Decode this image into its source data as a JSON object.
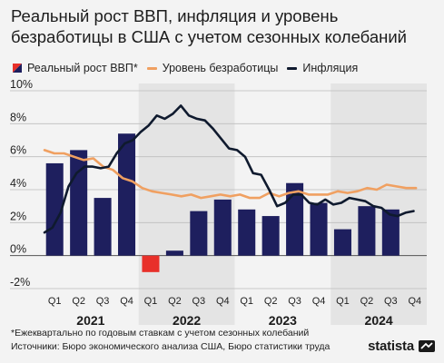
{
  "title": "Реальный рост ВВП, инфляция и уровень безработицы в США с учетом сезонных колебаний",
  "legend": {
    "gdp": "Реальный рост ВВП*",
    "unemployment": "Уровень безработицы",
    "inflation": "Инфляция"
  },
  "footnote": {
    "line1": "*Ежеквартально по годовым ставкам с учетом сезонных колебаний",
    "line2": "Источники: Бюро экономического анализа США, Бюро статистики труда"
  },
  "brand": {
    "name": "statista",
    "icon": "statista-logo-icon"
  },
  "colors": {
    "gdp_bar": "#1e1f5e",
    "gdp_negative": "#e8302a",
    "unemployment": "#f0a061",
    "inflation": "#0f1a2e",
    "year_band": "#e4e4e4"
  },
  "chart_data": {
    "type": "bar+line",
    "ylim": [
      -2,
      10
    ],
    "yticks": [
      "-2%",
      "0%",
      "2%",
      "4%",
      "6%",
      "8%",
      "10%"
    ],
    "ytick_values": [
      -2,
      0,
      2,
      4,
      6,
      8,
      10
    ],
    "quarters": [
      "Q1",
      "Q2",
      "Q3",
      "Q4",
      "Q1",
      "Q2",
      "Q3",
      "Q4",
      "Q1",
      "Q2",
      "Q3",
      "Q4",
      "Q1",
      "Q2",
      "Q3",
      "Q4"
    ],
    "years": [
      "2021",
      "2022",
      "2023",
      "2024"
    ],
    "grid": true,
    "series": [
      {
        "name": "Реальный рост ВВП*",
        "kind": "bar",
        "values": [
          5.6,
          6.4,
          3.5,
          7.4,
          -1.0,
          0.3,
          2.7,
          3.4,
          2.8,
          2.4,
          4.4,
          3.2,
          1.6,
          3.0,
          2.8,
          null
        ]
      },
      {
        "name": "Уровень безработицы",
        "kind": "line",
        "values": [
          6.4,
          6.2,
          6.2,
          6.0,
          5.8,
          5.9,
          5.4,
          5.2,
          4.7,
          4.5,
          4.1,
          3.9,
          3.8,
          3.7,
          3.6,
          3.7,
          3.5,
          3.6,
          3.7,
          3.6,
          3.7,
          3.5,
          3.5,
          3.8,
          3.6,
          3.8,
          3.9,
          3.7,
          3.7,
          3.7,
          3.9,
          3.8,
          3.9,
          4.1,
          4.0,
          4.3,
          4.2,
          4.1,
          4.1
        ]
      },
      {
        "name": "Инфляция",
        "kind": "line",
        "values": [
          1.4,
          1.7,
          2.6,
          4.2,
          5.0,
          5.4,
          5.4,
          5.3,
          5.4,
          6.2,
          6.8,
          7.0,
          7.5,
          7.9,
          8.5,
          8.3,
          8.6,
          9.1,
          8.5,
          8.3,
          8.2,
          7.7,
          7.1,
          6.5,
          6.4,
          6.0,
          5.0,
          4.9,
          4.0,
          3.0,
          3.2,
          3.7,
          3.7,
          3.2,
          3.1,
          3.4,
          3.1,
          3.2,
          3.5,
          3.4,
          3.3,
          3.0,
          2.9,
          2.5,
          2.4,
          2.6,
          2.7
        ]
      }
    ]
  }
}
